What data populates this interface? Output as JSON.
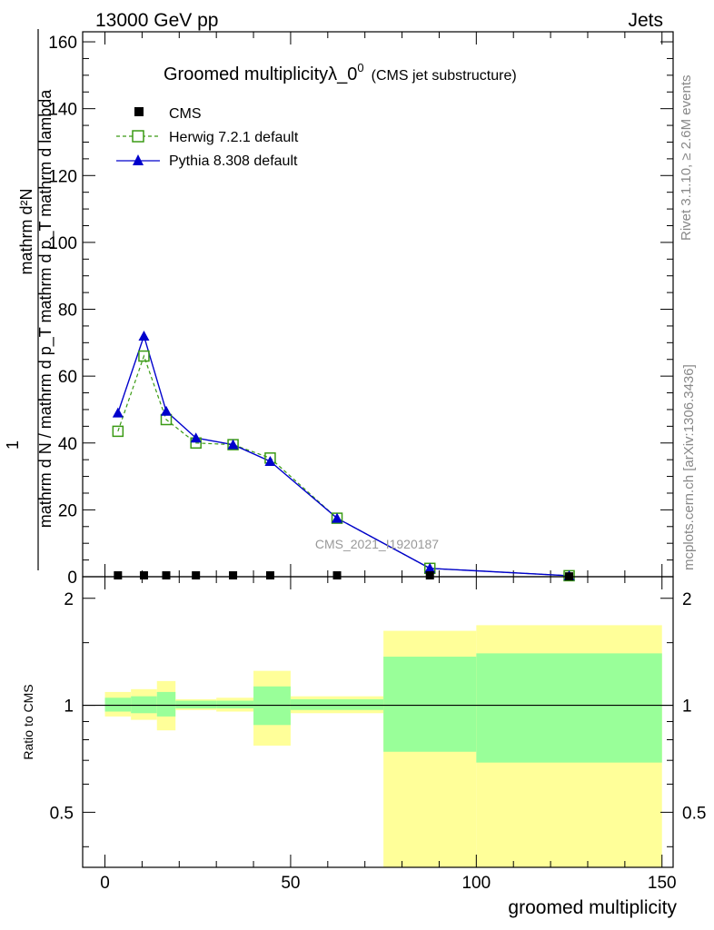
{
  "header": {
    "left": "13000 GeV pp",
    "right": "Jets"
  },
  "title": {
    "main": "Groomed multiplicityλ_0",
    "sup": "0",
    "sub": "(CMS jet substructure)"
  },
  "side_text": {
    "rivet": "Rivet 3.1.10, ≥ 2.6M events",
    "mcplots": "mcplots.cern.ch [arXiv:1306.3436]"
  },
  "watermark": "CMS_2021_I1920187",
  "ylabel_main": {
    "numerator": "mathrm d²N",
    "denominator": "mathrm d N / mathrm d p_T mathrm d p_T mathrm d lambda",
    "prefix": "1"
  },
  "ylabel_ratio": "Ratio to CMS",
  "xlabel": "groomed multiplicity",
  "legend": [
    {
      "name": "CMS",
      "color": "#000000",
      "marker": "square-filled"
    },
    {
      "name": "Herwig 7.2.1 default",
      "color": "#3a9a14",
      "marker": "square-open"
    },
    {
      "name": "Pythia 8.308 default",
      "color": "#0000cc",
      "marker": "triangle-filled"
    }
  ],
  "chart_data": {
    "type": "line",
    "xlim": [
      -6,
      153
    ],
    "ylim": [
      0,
      163
    ],
    "ratio_ylim": [
      0.35,
      2.3
    ],
    "x_ticks": [
      "0",
      "50",
      "100",
      "150"
    ],
    "y_ticks": [
      "0",
      "20",
      "40",
      "60",
      "80",
      "100",
      "120",
      "140",
      "160"
    ],
    "ratio_ticks": [
      "0.5",
      "1",
      "2"
    ],
    "bin_edges": [
      0,
      7,
      14,
      19,
      30,
      40,
      50,
      75,
      100,
      150
    ],
    "cms": {
      "x": [
        3.5,
        10.5,
        16.5,
        24.5,
        34.5,
        44.5,
        62.5,
        87.5,
        125
      ],
      "y": [
        0.4,
        0.4,
        0.4,
        0.4,
        0.4,
        0.4,
        0.4,
        0.4,
        0.1
      ]
    },
    "series": [
      {
        "name": "Herwig 7.2.1 default",
        "x": [
          3.5,
          10.5,
          16.5,
          24.5,
          34.5,
          44.5,
          62.5,
          87.5,
          125
        ],
        "y": [
          43.5,
          66,
          47,
          40,
          39.5,
          35.5,
          17.5,
          2.5,
          0.3
        ]
      },
      {
        "name": "Pythia 8.308 default",
        "x": [
          3.5,
          10.5,
          16.5,
          24.5,
          34.5,
          44.5,
          62.5,
          87.5,
          125
        ],
        "y": [
          49,
          72,
          49.5,
          41.5,
          39.5,
          34.5,
          17.5,
          2.5,
          0.3
        ]
      }
    ],
    "ratio_bands": [
      {
        "x0": 0,
        "x1": 7,
        "g": [
          0.96,
          1.05
        ],
        "yb": [
          0.93,
          1.09
        ]
      },
      {
        "x0": 7,
        "x1": 14,
        "g": [
          0.95,
          1.06
        ],
        "yb": [
          0.91,
          1.11
        ]
      },
      {
        "x0": 14,
        "x1": 19,
        "g": [
          0.93,
          1.09
        ],
        "yb": [
          0.85,
          1.17
        ]
      },
      {
        "x0": 19,
        "x1": 30,
        "g": [
          0.98,
          1.03
        ],
        "yb": [
          0.97,
          1.04
        ]
      },
      {
        "x0": 30,
        "x1": 40,
        "g": [
          0.98,
          1.03
        ],
        "yb": [
          0.96,
          1.05
        ]
      },
      {
        "x0": 40,
        "x1": 50,
        "g": [
          0.88,
          1.13
        ],
        "yb": [
          0.77,
          1.25
        ]
      },
      {
        "x0": 50,
        "x1": 75,
        "g": [
          0.97,
          1.04
        ],
        "yb": [
          0.95,
          1.06
        ]
      },
      {
        "x0": 75,
        "x1": 100,
        "g": [
          0.74,
          1.37
        ],
        "yb": [
          0.35,
          1.62
        ]
      },
      {
        "x0": 100,
        "x1": 150,
        "g": [
          0.69,
          1.4
        ],
        "yb": [
          0.35,
          1.68
        ]
      }
    ]
  }
}
